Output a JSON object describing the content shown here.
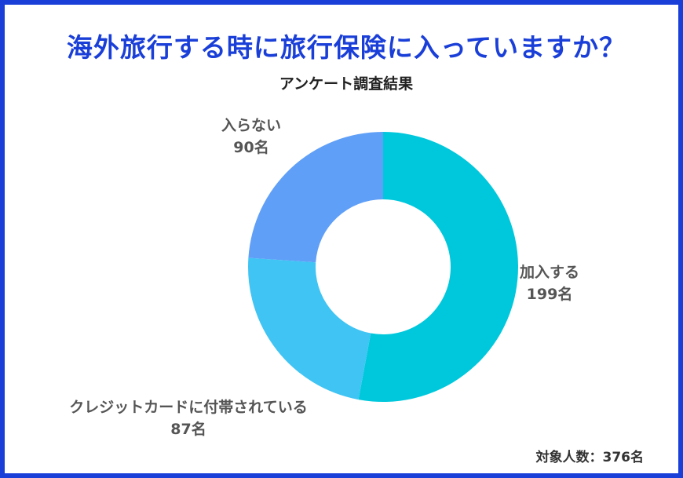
{
  "title": "海外旅行する時に旅行保険に入っていますか？",
  "subtitle": "アンケート調査結果",
  "footer": "対象人数：376名",
  "chart_data": {
    "type": "pie",
    "donut": true,
    "title": "海外旅行する時に旅行保険に入っていますか？",
    "subtitle": "アンケート調査結果",
    "total_label": "対象人数：376名",
    "slices": [
      {
        "label": "加入する",
        "value": 199,
        "value_label": "199名",
        "color": "#00c8dc"
      },
      {
        "label": "クレジットカードに付帯されている",
        "value": 87,
        "value_label": "87名",
        "color": "#40c4f4"
      },
      {
        "label": "入らない",
        "value": 90,
        "value_label": "90名",
        "color": "#5f9ff7"
      }
    ]
  }
}
